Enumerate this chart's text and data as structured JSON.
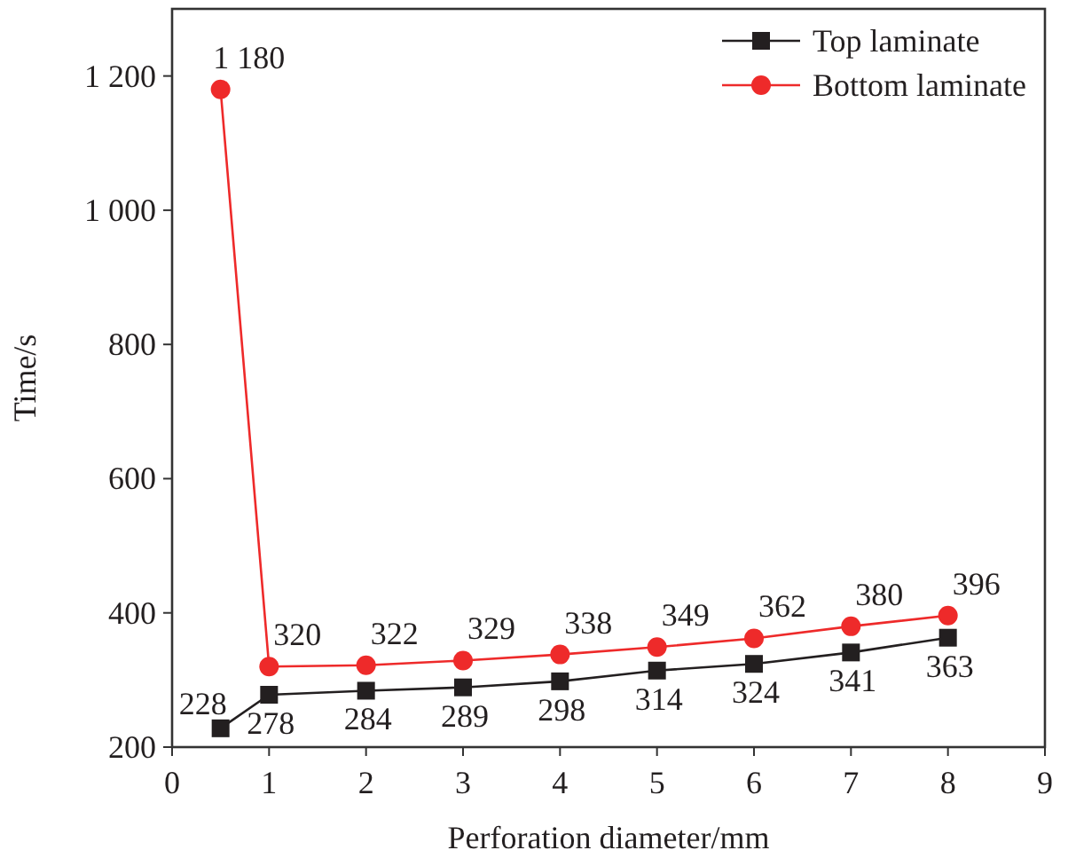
{
  "chart_data": {
    "type": "line",
    "xlabel": "Perforation diameter/mm",
    "ylabel": "Time/s",
    "x": [
      0.5,
      1,
      2,
      3,
      4,
      5,
      6,
      7,
      8
    ],
    "xlim": [
      0,
      9
    ],
    "xticks": [
      0,
      1,
      2,
      3,
      4,
      5,
      6,
      7,
      8,
      9
    ],
    "ylim": [
      200,
      1300
    ],
    "yticks": [
      200,
      400,
      600,
      800,
      {
        "value": 1000,
        "label": "1 000"
      },
      {
        "value": 1200,
        "label": "1 200"
      }
    ],
    "grid": false,
    "legend": "top right",
    "series": [
      {
        "name": "Top laminate",
        "color": "#231f20",
        "marker": "square",
        "values": [
          228,
          278,
          284,
          289,
          298,
          314,
          324,
          341,
          363
        ],
        "value_labels": [
          "228",
          "278",
          "284",
          "289",
          "298",
          "314",
          "324",
          "341",
          "363"
        ]
      },
      {
        "name": "Bottom laminate",
        "color": "#ee2a2a",
        "marker": "circle",
        "values": [
          1180,
          320,
          322,
          329,
          338,
          349,
          362,
          380,
          396
        ],
        "value_labels": [
          "1 180",
          "320",
          "322",
          "329",
          "338",
          "349",
          "362",
          "380",
          "396"
        ]
      }
    ]
  }
}
